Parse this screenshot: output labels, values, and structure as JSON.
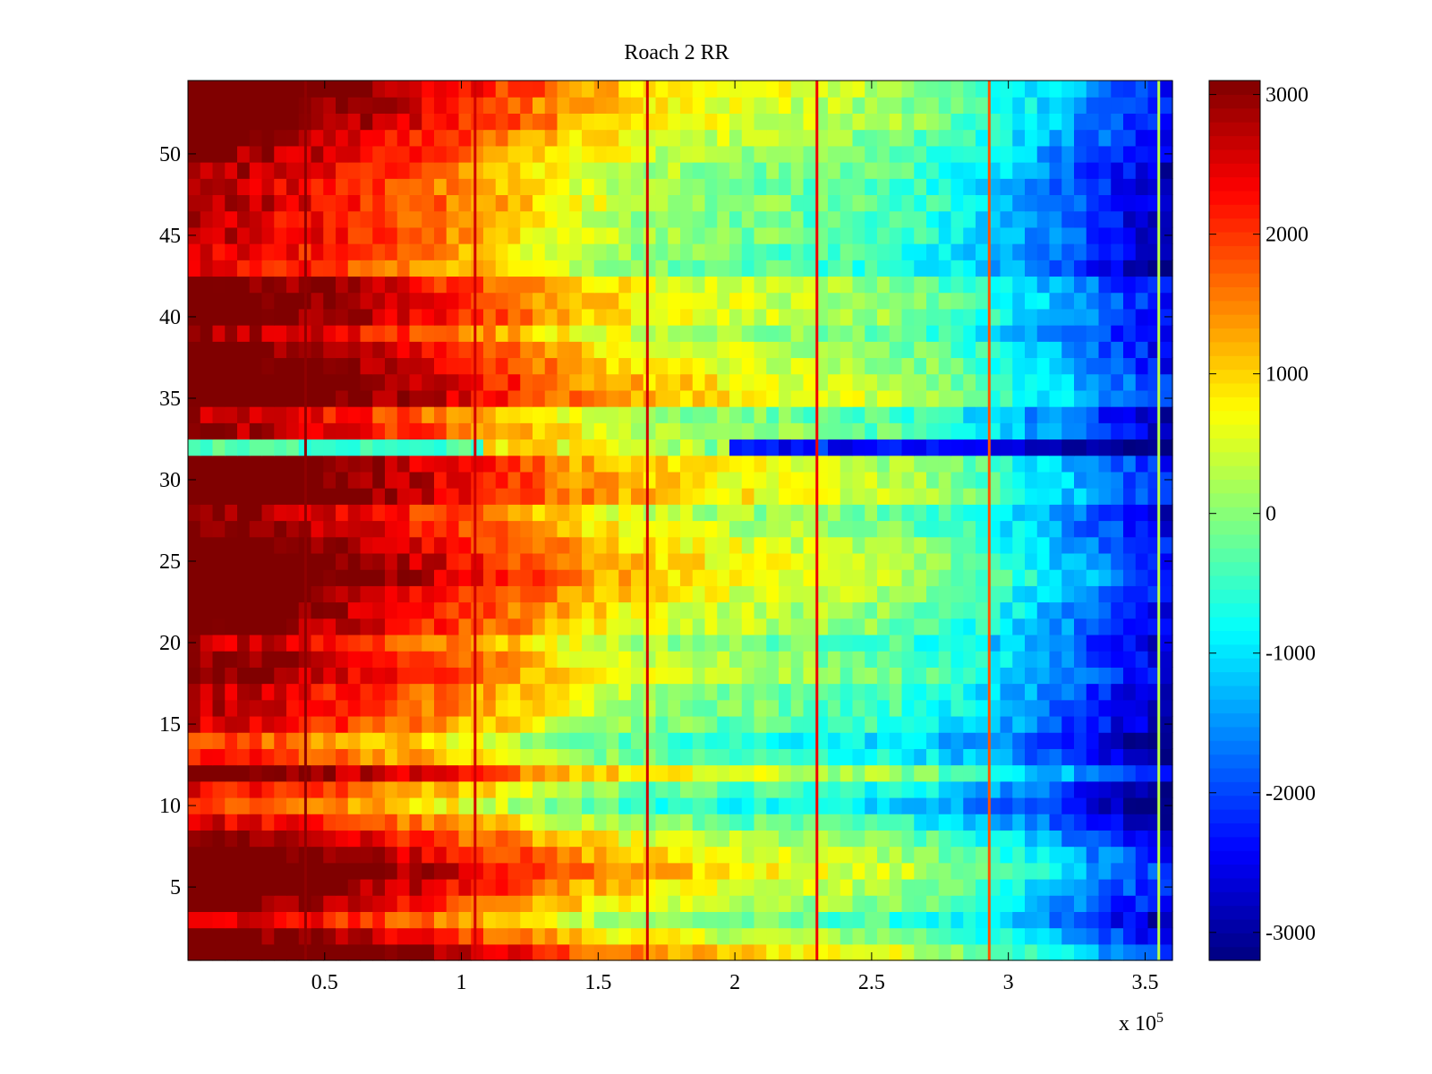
{
  "chart_data": {
    "type": "heatmap",
    "title": "Roach 2 RR",
    "xlabel": "",
    "ylabel": "",
    "x_multiplier_label": "x 10",
    "x_multiplier_exponent": "5",
    "xlim": [
      0,
      3.6
    ],
    "ylim": [
      0.5,
      54.5
    ],
    "x_ticks": [
      0.5,
      1,
      1.5,
      2,
      2.5,
      3,
      3.5
    ],
    "x_tick_labels": [
      "0.5",
      "1",
      "1.5",
      "2",
      "2.5",
      "3",
      "3.5"
    ],
    "y_ticks": [
      5,
      10,
      15,
      20,
      25,
      30,
      35,
      40,
      45,
      50
    ],
    "y_tick_labels": [
      "5",
      "10",
      "15",
      "20",
      "25",
      "30",
      "35",
      "40",
      "45",
      "50"
    ],
    "colorbar": {
      "colormap": "jet",
      "clim": [
        -3200,
        3100
      ],
      "ticks": [
        3000,
        2000,
        1000,
        0,
        -1000,
        -2000,
        -3000
      ],
      "tick_labels": [
        "3000",
        "2000",
        "1000",
        "0",
        "-1000",
        "-2000",
        "-3000"
      ]
    },
    "rows": 54,
    "x_columns": 80,
    "base_profile": [
      3000,
      2800,
      2500,
      2100,
      1700,
      1200,
      700,
      350,
      150,
      0,
      -150,
      -350,
      -800,
      -1400,
      -2100,
      -2800
    ],
    "row_offsets": [
      1200,
      400,
      -300,
      300,
      700,
      1000,
      700,
      200,
      -400,
      -1000,
      -600,
      500,
      -700,
      -1000,
      -400,
      -200,
      -200,
      200,
      100,
      -200,
      300,
      400,
      600,
      900,
      800,
      600,
      300,
      100,
      900,
      800,
      700,
      0,
      0,
      -200,
      900,
      900,
      600,
      400,
      0,
      500,
      500,
      400,
      -500,
      -400,
      -200,
      -300,
      -100,
      -200,
      -100,
      100,
      300,
      600,
      600,
      800
    ],
    "anomaly_row": 32,
    "vertical_line_x": [
      0.43,
      1.05,
      1.68,
      2.3,
      2.93,
      3.55
    ],
    "vertical_line_values": [
      3000,
      2600,
      2600,
      2400,
      1800,
      300
    ]
  }
}
